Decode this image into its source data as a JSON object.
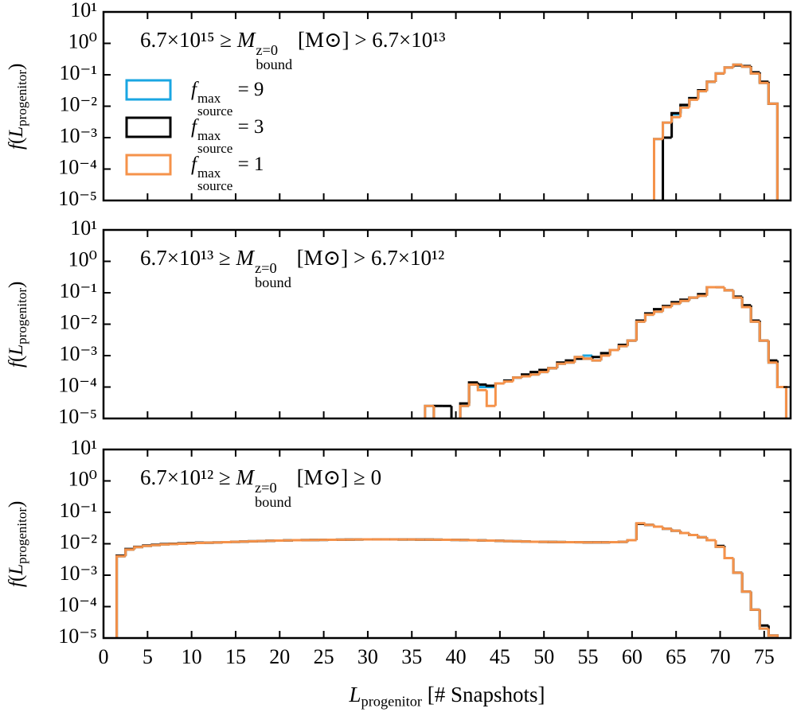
{
  "chart_data": [
    {
      "type": "histogram",
      "annotation": [
        {
          "t": "6.7×10¹⁵ ≥ ",
          "s": "n"
        },
        {
          "t": "M",
          "s": "i"
        },
        {
          "sup": "z=0",
          "sub": "bound"
        },
        {
          "t": " [M⊙] > 6.7×10¹³",
          "s": "n"
        }
      ],
      "ylabel": [
        {
          "t": "f",
          "s": "i"
        },
        {
          "t": "(",
          "s": "n"
        },
        {
          "t": "L",
          "s": "i"
        },
        {
          "t": "progenitor",
          "s": "sub"
        },
        {
          "t": ")",
          "s": "n"
        }
      ],
      "legend": "upper left",
      "bins": [
        62.5,
        63.5,
        64.5,
        65.5,
        66.5,
        67.5,
        68.5,
        69.5,
        70.5,
        71.5,
        72.5,
        73.5,
        74.5,
        75.5,
        76.5
      ],
      "series": [
        {
          "name": [
            {
              "t": "f",
              "s": "i"
            },
            {
              "sup": "max",
              "sub": "source"
            },
            {
              "t": " = 9",
              "s": "n"
            }
          ],
          "color": "#1aa6e2",
          "values": [
            0.0009,
            0.003,
            0.0055,
            0.01,
            0.018,
            0.03,
            0.06,
            0.11,
            0.17,
            0.21,
            0.18,
            0.11,
            0.055,
            0.012
          ]
        },
        {
          "name": [
            {
              "t": "f",
              "s": "i"
            },
            {
              "sup": "max",
              "sub": "source"
            },
            {
              "t": " = 3",
              "s": "n"
            }
          ],
          "color": "#000000",
          "values": [
            0,
            0.001,
            0.006,
            0.011,
            0.018,
            0.032,
            0.06,
            0.11,
            0.17,
            0.2,
            0.19,
            0.12,
            0.06,
            0.012
          ]
        },
        {
          "name": [
            {
              "t": "f",
              "s": "i"
            },
            {
              "sup": "max",
              "sub": "source"
            },
            {
              "t": " = 1",
              "s": "n"
            }
          ],
          "color": "#f5924a",
          "values": [
            0.0009,
            0.003,
            0.0045,
            0.009,
            0.016,
            0.03,
            0.06,
            0.11,
            0.17,
            0.21,
            0.18,
            0.11,
            0.055,
            0.012
          ]
        }
      ],
      "xlim": [
        0,
        78
      ],
      "xticks": [
        0,
        5,
        10,
        15,
        20,
        25,
        30,
        35,
        40,
        45,
        50,
        55,
        60,
        65,
        70,
        75
      ],
      "xtick_labels_shown": false,
      "ylim": [
        1e-05,
        10
      ],
      "log_y": true,
      "yticks": [
        {
          "value": 1e-05,
          "label": "10⁻⁵"
        },
        {
          "value": 0.0001,
          "label": "10⁻⁴"
        },
        {
          "value": 0.001,
          "label": "10⁻³"
        },
        {
          "value": 0.01,
          "label": "10⁻²"
        },
        {
          "value": 0.1,
          "label": "10⁻¹"
        },
        {
          "value": 1,
          "label": "10⁰"
        },
        {
          "value": 10,
          "label": "10¹"
        }
      ]
    },
    {
      "type": "histogram",
      "annotation": [
        {
          "t": "6.7×10¹³ ≥ ",
          "s": "n"
        },
        {
          "t": "M",
          "s": "i"
        },
        {
          "sup": "z=0",
          "sub": "bound"
        },
        {
          "t": " [M⊙] > 6.7×10¹²",
          "s": "n"
        }
      ],
      "ylabel": [
        {
          "t": "f",
          "s": "i"
        },
        {
          "t": "(",
          "s": "n"
        },
        {
          "t": "L",
          "s": "i"
        },
        {
          "t": "progenitor",
          "s": "sub"
        },
        {
          "t": ")",
          "s": "n"
        }
      ],
      "bins": [
        35.5,
        36.5,
        37.5,
        38.5,
        39.5,
        40.5,
        41.5,
        42.5,
        43.5,
        44.5,
        45.5,
        46.5,
        47.5,
        48.5,
        49.5,
        50.5,
        51.5,
        52.5,
        53.5,
        54.5,
        55.5,
        56.5,
        57.5,
        58.5,
        59.5,
        60.5,
        61.5,
        62.5,
        63.5,
        64.5,
        65.5,
        66.5,
        67.5,
        68.5,
        69.5,
        70.5,
        71.5,
        72.5,
        73.5,
        74.5,
        75.5,
        76.5,
        77.5
      ],
      "series": [
        {
          "color": "#1aa6e2",
          "values": [
            0,
            2.5e-05,
            0,
            0,
            0,
            2.5e-05,
            0.00012,
            0.0001,
            0.0001,
            0.00013,
            0.00015,
            0.0002,
            0.00022,
            0.00025,
            0.0003,
            0.0004,
            0.00055,
            0.0006,
            0.0009,
            0.001,
            0.0007,
            0.001,
            0.0015,
            0.002,
            0.003,
            0.012,
            0.02,
            0.025,
            0.035,
            0.045,
            0.055,
            0.07,
            0.08,
            0.15,
            0.15,
            0.12,
            0.07,
            0.035,
            0.012,
            0.003,
            0.0006,
            0.0001
          ]
        },
        {
          "color": "#000000",
          "values": [
            0,
            0,
            2.5e-05,
            2.5e-05,
            0,
            3e-05,
            0.00014,
            0.00012,
            0.00011,
            0.00013,
            0.00016,
            0.0002,
            0.00025,
            0.0003,
            0.00035,
            0.0004,
            0.0006,
            0.0007,
            0.0008,
            0.0008,
            0.0009,
            0.0012,
            0.0015,
            0.0022,
            0.003,
            0.013,
            0.022,
            0.03,
            0.038,
            0.05,
            0.06,
            0.07,
            0.09,
            0.15,
            0.15,
            0.12,
            0.075,
            0.04,
            0.013,
            0.003,
            0.0007,
            0.0001
          ]
        },
        {
          "color": "#f5924a",
          "values": [
            0,
            2.5e-05,
            0,
            0,
            0,
            2.5e-05,
            0.00012,
            8e-05,
            2.5e-05,
            0.00013,
            0.00015,
            0.0002,
            0.00022,
            0.00025,
            0.0003,
            0.0004,
            0.00055,
            0.0006,
            0.0009,
            0.0008,
            0.0007,
            0.001,
            0.0015,
            0.002,
            0.003,
            0.012,
            0.02,
            0.025,
            0.035,
            0.045,
            0.055,
            0.07,
            0.08,
            0.15,
            0.15,
            0.12,
            0.07,
            0.035,
            0.012,
            0.003,
            0.0006,
            0.0001
          ]
        }
      ],
      "xlim": [
        0,
        78
      ],
      "xticks": [
        0,
        5,
        10,
        15,
        20,
        25,
        30,
        35,
        40,
        45,
        50,
        55,
        60,
        65,
        70,
        75
      ],
      "xtick_labels_shown": false,
      "ylim": [
        1e-05,
        10
      ],
      "log_y": true,
      "yticks": [
        {
          "value": 1e-05,
          "label": "10⁻⁵"
        },
        {
          "value": 0.0001,
          "label": "10⁻⁴"
        },
        {
          "value": 0.001,
          "label": "10⁻³"
        },
        {
          "value": 0.01,
          "label": "10⁻²"
        },
        {
          "value": 0.1,
          "label": "10⁻¹"
        },
        {
          "value": 1,
          "label": "10⁰"
        },
        {
          "value": 10,
          "label": "10¹"
        }
      ]
    },
    {
      "type": "histogram",
      "annotation": [
        {
          "t": "6.7×10¹² ≥ ",
          "s": "n"
        },
        {
          "t": "M",
          "s": "i"
        },
        {
          "sup": "z=0",
          "sub": "bound"
        },
        {
          "t": " [M⊙] ≥ 0",
          "s": "n"
        }
      ],
      "ylabel": [
        {
          "t": "f",
          "s": "i"
        },
        {
          "t": "(",
          "s": "n"
        },
        {
          "t": "L",
          "s": "i"
        },
        {
          "t": "progenitor",
          "s": "sub"
        },
        {
          "t": ")",
          "s": "n"
        }
      ],
      "xlabel": [
        {
          "t": "L",
          "s": "i"
        },
        {
          "t": "progenitor",
          "s": "sub"
        },
        {
          "t": " [# Snapshots]",
          "s": "n"
        }
      ],
      "bins": [
        1.5,
        2.5,
        3.5,
        4.5,
        5.5,
        6.5,
        7.5,
        8.5,
        9.5,
        10.5,
        11.5,
        12.5,
        13.5,
        14.5,
        15.5,
        16.5,
        17.5,
        18.5,
        19.5,
        20.5,
        21.5,
        22.5,
        23.5,
        24.5,
        25.5,
        26.5,
        27.5,
        28.5,
        29.5,
        30.5,
        31.5,
        32.5,
        33.5,
        34.5,
        35.5,
        36.5,
        37.5,
        38.5,
        39.5,
        40.5,
        41.5,
        42.5,
        43.5,
        44.5,
        45.5,
        46.5,
        47.5,
        48.5,
        49.5,
        50.5,
        51.5,
        52.5,
        53.5,
        54.5,
        55.5,
        56.5,
        57.5,
        58.5,
        59.5,
        60.5,
        61.5,
        62.5,
        63.5,
        64.5,
        65.5,
        66.5,
        67.5,
        68.5,
        69.5,
        70.5,
        71.5,
        72.5,
        73.5,
        74.5,
        75.5,
        76.5
      ],
      "series": [
        {
          "color": "#1aa6e2",
          "values": [
            0.004,
            0.0065,
            0.0078,
            0.0085,
            0.009,
            0.0095,
            0.0098,
            0.01,
            0.0103,
            0.0106,
            0.0108,
            0.011,
            0.0112,
            0.0115,
            0.0117,
            0.012,
            0.0122,
            0.0124,
            0.0126,
            0.0128,
            0.013,
            0.0131,
            0.0132,
            0.0133,
            0.0134,
            0.0135,
            0.0136,
            0.0137,
            0.0138,
            0.0138,
            0.0138,
            0.0138,
            0.0137,
            0.0137,
            0.0136,
            0.0136,
            0.0135,
            0.0134,
            0.0133,
            0.0132,
            0.013,
            0.0128,
            0.0126,
            0.0124,
            0.0122,
            0.012,
            0.0118,
            0.0116,
            0.0115,
            0.0114,
            0.0113,
            0.0112,
            0.0112,
            0.0111,
            0.0111,
            0.0111,
            0.0112,
            0.0115,
            0.013,
            0.044,
            0.04,
            0.035,
            0.03,
            0.026,
            0.022,
            0.019,
            0.016,
            0.013,
            0.008,
            0.0035,
            0.0012,
            0.0003,
            8e-05,
            2e-05,
            1.2e-05
          ]
        },
        {
          "color": "#000000",
          "values": [
            0.0042,
            0.0068,
            0.008,
            0.0088,
            0.0093,
            0.0098,
            0.01,
            0.0103,
            0.0106,
            0.0108,
            0.0108,
            0.011,
            0.0112,
            0.0115,
            0.0117,
            0.012,
            0.0122,
            0.0124,
            0.0126,
            0.0128,
            0.013,
            0.0131,
            0.0132,
            0.0133,
            0.0134,
            0.0135,
            0.0136,
            0.0137,
            0.0138,
            0.0138,
            0.0138,
            0.0138,
            0.0137,
            0.0137,
            0.0136,
            0.0136,
            0.0135,
            0.0134,
            0.0133,
            0.0132,
            0.013,
            0.0128,
            0.0126,
            0.0124,
            0.0122,
            0.012,
            0.0118,
            0.0116,
            0.0115,
            0.0114,
            0.0113,
            0.0112,
            0.0112,
            0.0111,
            0.0111,
            0.0111,
            0.0112,
            0.0115,
            0.013,
            0.043,
            0.04,
            0.035,
            0.03,
            0.026,
            0.022,
            0.019,
            0.016,
            0.013,
            0.0085,
            0.0035,
            0.0012,
            0.0003,
            8e-05,
            2.5e-05,
            1.2e-05
          ]
        },
        {
          "color": "#f5924a",
          "values": [
            0.004,
            0.0065,
            0.0078,
            0.0085,
            0.009,
            0.0095,
            0.0098,
            0.01,
            0.0103,
            0.0106,
            0.0108,
            0.011,
            0.0112,
            0.0115,
            0.0117,
            0.012,
            0.0122,
            0.0124,
            0.0126,
            0.0128,
            0.013,
            0.0131,
            0.0132,
            0.0133,
            0.0134,
            0.0135,
            0.0136,
            0.0137,
            0.0138,
            0.0138,
            0.0138,
            0.0138,
            0.0137,
            0.0137,
            0.0136,
            0.0136,
            0.0135,
            0.0134,
            0.0133,
            0.0132,
            0.013,
            0.0128,
            0.0126,
            0.0124,
            0.0122,
            0.012,
            0.0118,
            0.0116,
            0.0115,
            0.0114,
            0.0113,
            0.0112,
            0.0112,
            0.0111,
            0.0111,
            0.0111,
            0.0112,
            0.0115,
            0.013,
            0.045,
            0.04,
            0.035,
            0.03,
            0.026,
            0.022,
            0.019,
            0.016,
            0.013,
            0.008,
            0.0035,
            0.0012,
            0.0003,
            8e-05,
            2e-05,
            1.2e-05
          ]
        }
      ],
      "xlim": [
        0,
        78
      ],
      "xticks": [
        0,
        5,
        10,
        15,
        20,
        25,
        30,
        35,
        40,
        45,
        50,
        55,
        60,
        65,
        70,
        75
      ],
      "xtick_labels_shown": true,
      "ylim": [
        1e-05,
        10
      ],
      "log_y": true,
      "yticks": [
        {
          "value": 1e-05,
          "label": "10⁻⁵"
        },
        {
          "value": 0.0001,
          "label": "10⁻⁴"
        },
        {
          "value": 0.001,
          "label": "10⁻³"
        },
        {
          "value": 0.01,
          "label": "10⁻²"
        },
        {
          "value": 0.1,
          "label": "10⁻¹"
        },
        {
          "value": 1,
          "label": "10⁰"
        },
        {
          "value": 10,
          "label": "10¹"
        }
      ]
    }
  ]
}
